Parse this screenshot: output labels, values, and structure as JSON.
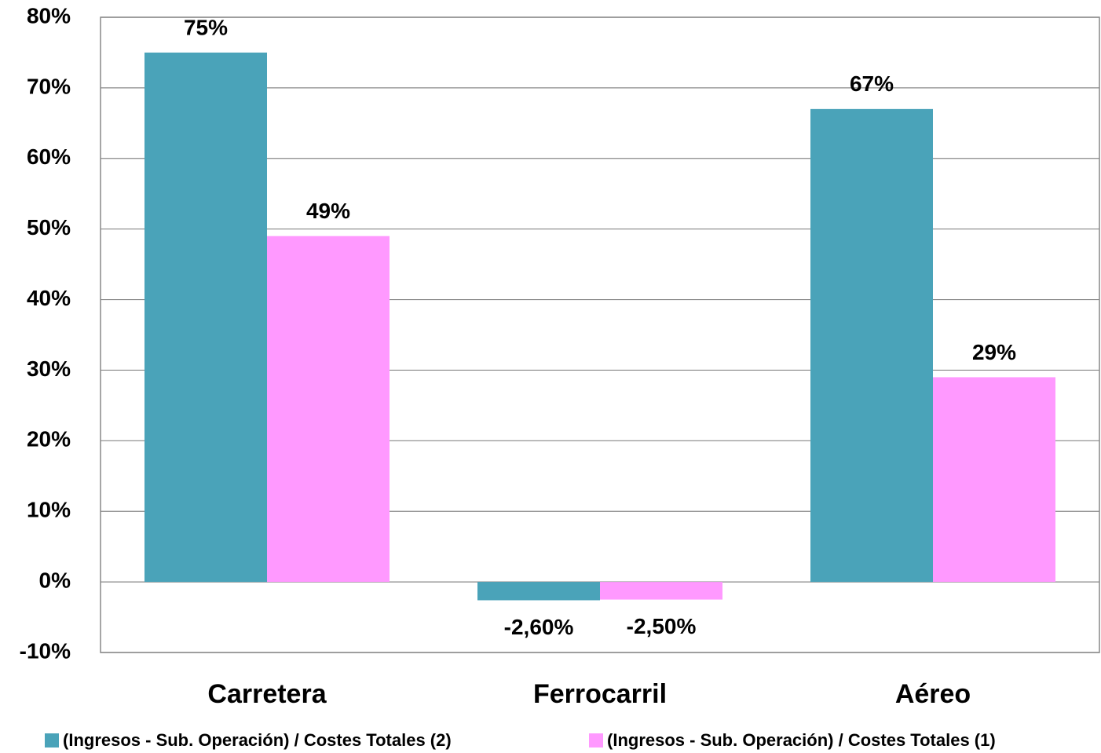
{
  "chart_data": {
    "type": "bar",
    "categories": [
      "Carretera",
      "Ferrocarril",
      "Aéreo"
    ],
    "series": [
      {
        "name": "(Ingresos - Sub. Operación) / Costes Totales (2)",
        "color": "#4aa3b9",
        "values": [
          75,
          -2.6,
          67
        ],
        "value_labels": [
          "75%",
          "-2,60%",
          "67%"
        ]
      },
      {
        "name": "(Ingresos - Sub. Operación) / Costes Totales (1)",
        "color": "#ff99ff",
        "values": [
          49,
          -2.5,
          29
        ],
        "value_labels": [
          "49%",
          "-2,50%",
          "29%"
        ]
      }
    ],
    "ylim": [
      -10,
      80
    ],
    "yticks": [
      {
        "value": -10,
        "label": "-10%"
      },
      {
        "value": 0,
        "label": "0%"
      },
      {
        "value": 10,
        "label": "10%"
      },
      {
        "value": 20,
        "label": "20%"
      },
      {
        "value": 30,
        "label": "30%"
      },
      {
        "value": 40,
        "label": "40%"
      },
      {
        "value": 50,
        "label": "50%"
      },
      {
        "value": 60,
        "label": "60%"
      },
      {
        "value": 70,
        "label": "70%"
      },
      {
        "value": 80,
        "label": "80%"
      }
    ],
    "grid": true,
    "legend": "bottom"
  }
}
